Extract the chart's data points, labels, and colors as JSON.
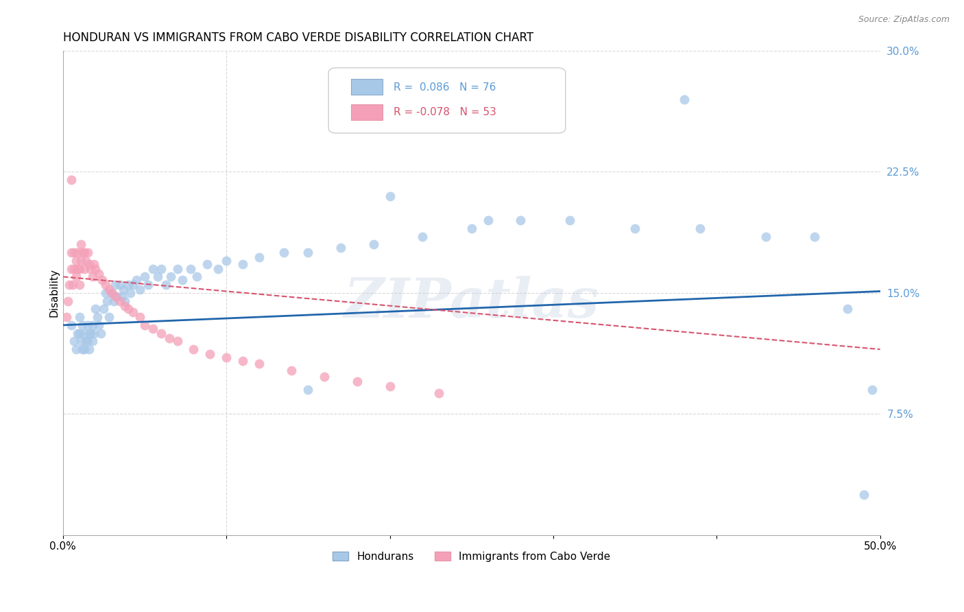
{
  "title": "HONDURAN VS IMMIGRANTS FROM CABO VERDE DISABILITY CORRELATION CHART",
  "source": "Source: ZipAtlas.com",
  "ylabel": "Disability",
  "xlim": [
    0.0,
    0.5
  ],
  "ylim": [
    0.0,
    0.3
  ],
  "xticks": [
    0.0,
    0.1,
    0.2,
    0.3,
    0.4,
    0.5
  ],
  "xticklabels": [
    "0.0%",
    "",
    "",
    "",
    "",
    "50.0%"
  ],
  "yticks_right": [
    0.075,
    0.15,
    0.225,
    0.3
  ],
  "yticklabels_right": [
    "7.5%",
    "15.0%",
    "22.5%",
    "30.0%"
  ],
  "blue_color": "#a8c8e8",
  "pink_color": "#f4a0b8",
  "blue_line_color": "#2166ac",
  "pink_line_color": "#d6546e",
  "right_axis_color": "#5b9bd5",
  "watermark": "ZIPatlas",
  "legend_r1": "R =  0.086",
  "legend_n1": "N = 76",
  "legend_r2": "R = -0.078",
  "legend_n2": "N = 53",
  "label_hondurans": "Hondurans",
  "label_cabo_verde": "Immigrants from Cabo Verde",
  "blue_x": [
    0.005,
    0.007,
    0.008,
    0.009,
    0.01,
    0.01,
    0.011,
    0.012,
    0.012,
    0.013,
    0.013,
    0.014,
    0.015,
    0.015,
    0.016,
    0.016,
    0.017,
    0.018,
    0.018,
    0.019,
    0.02,
    0.021,
    0.022,
    0.023,
    0.025,
    0.026,
    0.027,
    0.028,
    0.03,
    0.031,
    0.032,
    0.033,
    0.035,
    0.036,
    0.037,
    0.038,
    0.04,
    0.041,
    0.043,
    0.045,
    0.047,
    0.05,
    0.052,
    0.055,
    0.058,
    0.06,
    0.063,
    0.066,
    0.07,
    0.073,
    0.078,
    0.082,
    0.088,
    0.095,
    0.1,
    0.11,
    0.12,
    0.135,
    0.15,
    0.17,
    0.19,
    0.22,
    0.25,
    0.28,
    0.31,
    0.35,
    0.39,
    0.43,
    0.46,
    0.48,
    0.495,
    0.38,
    0.15,
    0.2,
    0.26,
    0.49
  ],
  "blue_y": [
    0.13,
    0.12,
    0.115,
    0.125,
    0.135,
    0.125,
    0.12,
    0.13,
    0.115,
    0.125,
    0.115,
    0.12,
    0.13,
    0.12,
    0.125,
    0.115,
    0.125,
    0.13,
    0.12,
    0.125,
    0.14,
    0.135,
    0.13,
    0.125,
    0.14,
    0.15,
    0.145,
    0.135,
    0.15,
    0.145,
    0.155,
    0.148,
    0.155,
    0.148,
    0.152,
    0.145,
    0.155,
    0.15,
    0.155,
    0.158,
    0.152,
    0.16,
    0.155,
    0.165,
    0.16,
    0.165,
    0.155,
    0.16,
    0.165,
    0.158,
    0.165,
    0.16,
    0.168,
    0.165,
    0.17,
    0.168,
    0.172,
    0.175,
    0.175,
    0.178,
    0.18,
    0.185,
    0.19,
    0.195,
    0.195,
    0.19,
    0.19,
    0.185,
    0.185,
    0.14,
    0.09,
    0.27,
    0.09,
    0.21,
    0.195,
    0.025
  ],
  "pink_x": [
    0.002,
    0.003,
    0.004,
    0.005,
    0.005,
    0.006,
    0.007,
    0.007,
    0.008,
    0.008,
    0.009,
    0.009,
    0.01,
    0.01,
    0.011,
    0.011,
    0.012,
    0.013,
    0.013,
    0.014,
    0.015,
    0.016,
    0.017,
    0.018,
    0.019,
    0.02,
    0.022,
    0.024,
    0.026,
    0.028,
    0.03,
    0.032,
    0.035,
    0.038,
    0.04,
    0.043,
    0.047,
    0.05,
    0.055,
    0.06,
    0.065,
    0.07,
    0.08,
    0.09,
    0.1,
    0.11,
    0.12,
    0.14,
    0.16,
    0.18,
    0.2,
    0.23,
    0.005
  ],
  "pink_y": [
    0.135,
    0.145,
    0.155,
    0.165,
    0.175,
    0.155,
    0.165,
    0.175,
    0.16,
    0.17,
    0.165,
    0.175,
    0.155,
    0.165,
    0.17,
    0.18,
    0.175,
    0.165,
    0.175,
    0.17,
    0.175,
    0.168,
    0.165,
    0.16,
    0.168,
    0.165,
    0.162,
    0.158,
    0.155,
    0.152,
    0.15,
    0.148,
    0.145,
    0.142,
    0.14,
    0.138,
    0.135,
    0.13,
    0.128,
    0.125,
    0.122,
    0.12,
    0.115,
    0.112,
    0.11,
    0.108,
    0.106,
    0.102,
    0.098,
    0.095,
    0.092,
    0.088,
    0.22
  ],
  "background_color": "#ffffff",
  "grid_color": "#d8d8d8",
  "title_fontsize": 12,
  "axis_label_fontsize": 11,
  "tick_fontsize": 11,
  "legend_fontsize": 11
}
